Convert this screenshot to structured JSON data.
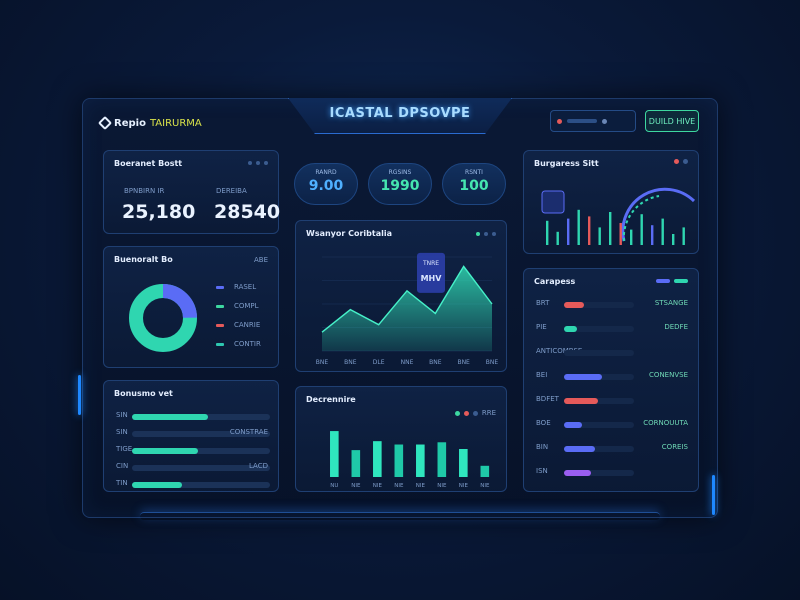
{
  "header": {
    "title": "ICASTAL DPSOVPE",
    "logo_text": "Repio",
    "logo_sub": "TAIRURMA",
    "right_button": "DUILD HIVE"
  },
  "overview": {
    "title": "Boeranet Bostt",
    "stat1": {
      "label": "BPNBIRN IR",
      "value": "25,180"
    },
    "stat2": {
      "label": "DEREIBA",
      "value": "28540"
    }
  },
  "kpis": [
    {
      "label": "RANRD",
      "value": "9.00",
      "color": "#4fb0ff"
    },
    {
      "label": "RGSINS",
      "value": "1990",
      "color": "#46e6b0"
    },
    {
      "label": "RSNTI",
      "value": "100",
      "color": "#46e6b0"
    }
  ],
  "donut": {
    "title": "Buenoralt Bo",
    "tag": "ABE",
    "legend": [
      {
        "label": "RASEL",
        "color": "#5a6cf5"
      },
      {
        "label": "COMPL",
        "color": "#3dd7a0"
      },
      {
        "label": "CANRIE",
        "color": "#e55a5a"
      },
      {
        "label": "CONTIR",
        "color": "#2ec7b0"
      }
    ]
  },
  "area_chart": {
    "title": "Wsanyor Coribtalia",
    "tooltip": {
      "label": "TNRE",
      "value": "MHV"
    }
  },
  "left_bars": {
    "title": "Bonusmo vet",
    "rows": [
      {
        "label": "SIN",
        "value": "",
        "fill": 0.55,
        "color": "#2fd6b0"
      },
      {
        "label": "SIN",
        "value": "CONSTRAE",
        "fill": 0.0,
        "color": "#2fd6b0"
      },
      {
        "label": "TIGE",
        "value": "",
        "fill": 0.48,
        "color": "#2fd6b0"
      },
      {
        "label": "CIN",
        "value": "LACD",
        "fill": 0.0,
        "color": "#2fd6b0"
      },
      {
        "label": "TIN",
        "value": "",
        "fill": 0.36,
        "color": "#2fd6b0"
      }
    ]
  },
  "bottom_bar_chart": {
    "title": "Decrennire",
    "legend_text": "RRE"
  },
  "gauge_panel": {
    "title": "Burgaress Sitt"
  },
  "progress_panel": {
    "title": "Carapess",
    "rows": [
      {
        "label": "BRT",
        "value": "STSANGE",
        "fill": 0.28,
        "color": "#e55a5a"
      },
      {
        "label": "PIE",
        "value": "DEDFE",
        "fill": 0.18,
        "color": "#2fd6b0"
      },
      {
        "label": "ANTICOMBSE",
        "value": "",
        "fill": 0.0,
        "color": "#5a6cf5"
      },
      {
        "label": "BEI",
        "value": "CONENVSE",
        "fill": 0.54,
        "color": "#5a6cf5"
      },
      {
        "label": "BDFET",
        "value": "",
        "fill": 0.48,
        "color": "#e55a5a"
      },
      {
        "label": "BOE",
        "value": "CORNOUUTA",
        "fill": 0.26,
        "color": "#5a6cf5"
      },
      {
        "label": "BIN",
        "value": "COREIS",
        "fill": 0.44,
        "color": "#5a6cf5"
      },
      {
        "label": "ISN",
        "value": "",
        "fill": 0.38,
        "color": "#9a5ef0"
      }
    ]
  },
  "chart_data": [
    {
      "type": "area",
      "title": "Wsanyor Coribtalia",
      "categories": [
        "BNE",
        "BNE",
        "DLE",
        "NNE",
        "BNE",
        "BNE",
        "BNE"
      ],
      "values": [
        10,
        22,
        14,
        32,
        20,
        45,
        25
      ],
      "ylim": [
        0,
        50
      ]
    },
    {
      "type": "bar",
      "title": "Decrennire",
      "categories": [
        "NU",
        "NIE",
        "NIE",
        "NIE",
        "NIE",
        "NIE",
        "NIE",
        "NIE"
      ],
      "values": [
        82,
        48,
        64,
        58,
        58,
        62,
        50,
        20
      ],
      "ylim": [
        0,
        100
      ]
    },
    {
      "type": "bar",
      "title": "Burgaress Sitt",
      "categories": [
        "",
        "",
        "",
        "",
        "",
        "",
        "",
        "",
        "",
        "",
        "",
        "",
        "",
        ""
      ],
      "values": [
        55,
        30,
        60,
        80,
        65,
        40,
        75,
        50,
        35,
        70,
        45,
        60,
        25,
        40
      ],
      "ylim": [
        0,
        100
      ]
    }
  ]
}
